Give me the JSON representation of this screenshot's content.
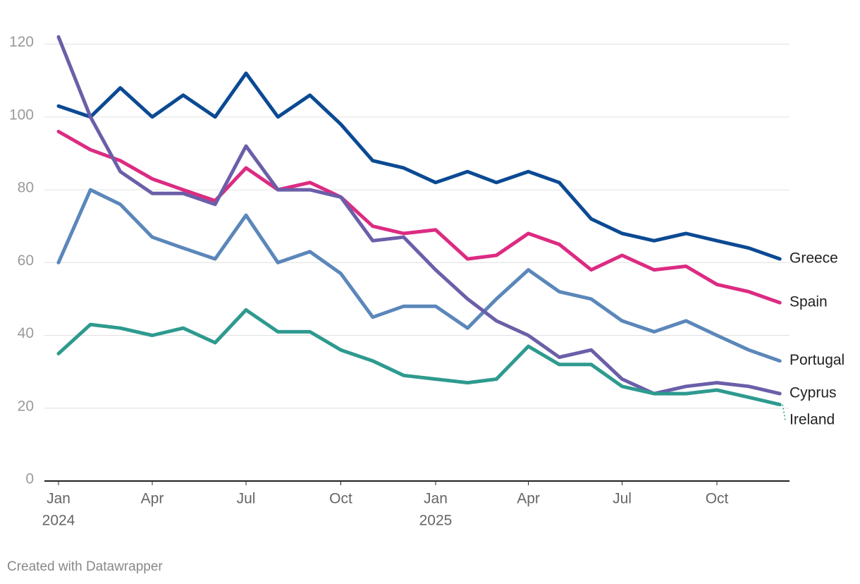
{
  "chart_data": {
    "type": "line",
    "credit": "Created with Datawrapper",
    "x": [
      "2024-01",
      "2024-02",
      "2024-03",
      "2024-04",
      "2024-05",
      "2024-06",
      "2024-07",
      "2024-08",
      "2024-09",
      "2024-10",
      "2024-11",
      "2024-12",
      "2025-01",
      "2025-02",
      "2025-03",
      "2025-04",
      "2025-05",
      "2025-06",
      "2025-07",
      "2025-08",
      "2025-09",
      "2025-10",
      "2025-11",
      "2025-12"
    ],
    "series": [
      {
        "name": "Greece",
        "color": "#0b4a93",
        "values": [
          103,
          100,
          108,
          100,
          106,
          100,
          112,
          100,
          106,
          98,
          88,
          86,
          82,
          85,
          82,
          85,
          82,
          72,
          68,
          66,
          68,
          66,
          64,
          61
        ]
      },
      {
        "name": "Spain",
        "color": "#dc2b82",
        "values": [
          96,
          91,
          88,
          83,
          80,
          77,
          86,
          80,
          82,
          78,
          70,
          68,
          69,
          61,
          62,
          68,
          65,
          58,
          62,
          58,
          59,
          54,
          52,
          49
        ]
      },
      {
        "name": "Portugal",
        "color": "#5b87ba",
        "values": [
          60,
          80,
          76,
          67,
          64,
          61,
          73,
          60,
          63,
          57,
          45,
          48,
          48,
          42,
          50,
          58,
          52,
          50,
          44,
          41,
          44,
          40,
          36,
          33
        ]
      },
      {
        "name": "Cyprus",
        "color": "#6a5fa8",
        "values": [
          122,
          100,
          85,
          79,
          79,
          76,
          92,
          80,
          80,
          78,
          66,
          67,
          58,
          50,
          44,
          40,
          34,
          36,
          28,
          24,
          26,
          27,
          26,
          24
        ]
      },
      {
        "name": "Ireland",
        "color": "#2e9a8f",
        "values": [
          35,
          43,
          42,
          40,
          42,
          38,
          47,
          41,
          41,
          36,
          33,
          29,
          28,
          27,
          28,
          37,
          32,
          32,
          26,
          24,
          24,
          25,
          23,
          21
        ]
      }
    ],
    "ylim": [
      0,
      130
    ],
    "yticks": [
      0,
      20,
      40,
      60,
      80,
      100,
      120
    ],
    "xticks": [
      {
        "value": "2024-01",
        "label": "Jan"
      },
      {
        "value": "2024-04",
        "label": "Apr"
      },
      {
        "value": "2024-07",
        "label": "Jul"
      },
      {
        "value": "2024-10",
        "label": "Oct"
      },
      {
        "value": "2025-01",
        "label": "Jan"
      },
      {
        "value": "2025-04",
        "label": "Apr"
      },
      {
        "value": "2025-07",
        "label": "Jul"
      },
      {
        "value": "2025-10",
        "label": "Oct"
      }
    ],
    "xtick_years": [
      {
        "value": "2024-01",
        "label": "2024"
      },
      {
        "value": "2025-01",
        "label": "2025"
      }
    ],
    "grid": true
  }
}
